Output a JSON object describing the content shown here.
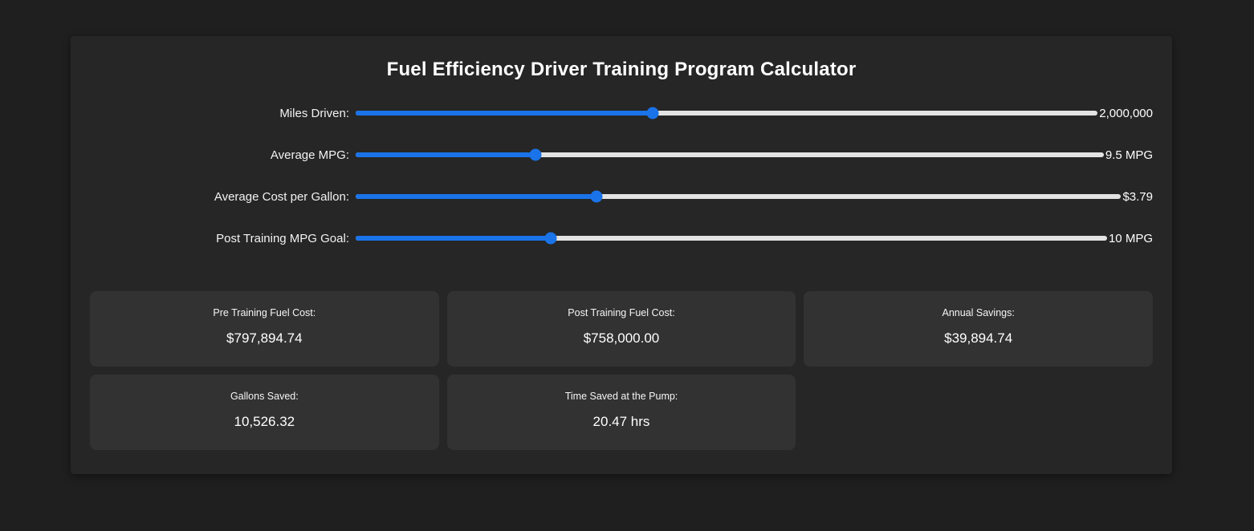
{
  "title": "Fuel Efficiency Driver Training Program Calculator",
  "colors": {
    "accent_blue": "#1a73e8",
    "track_gray": "#e3e3e3",
    "card_background": "#323232"
  },
  "sliders": [
    {
      "label": "Miles Driven:",
      "value": "2,000,000",
      "percent": 40
    },
    {
      "label": "Average MPG:",
      "value": "9.5 MPG",
      "percent": 24
    },
    {
      "label": "Average Cost per Gallon:",
      "value": "$3.79",
      "percent": 31.5
    },
    {
      "label": "Post Training MPG Goal:",
      "value": "10 MPG",
      "percent": 26
    }
  ],
  "results": [
    {
      "label": "Pre Training Fuel Cost:",
      "value": "$797,894.74"
    },
    {
      "label": "Post Training Fuel Cost:",
      "value": "$758,000.00"
    },
    {
      "label": "Annual Savings:",
      "value": "$39,894.74"
    },
    {
      "label": "Gallons Saved:",
      "value": "10,526.32"
    },
    {
      "label": "Time Saved at the Pump:",
      "value": "20.47 hrs"
    }
  ]
}
